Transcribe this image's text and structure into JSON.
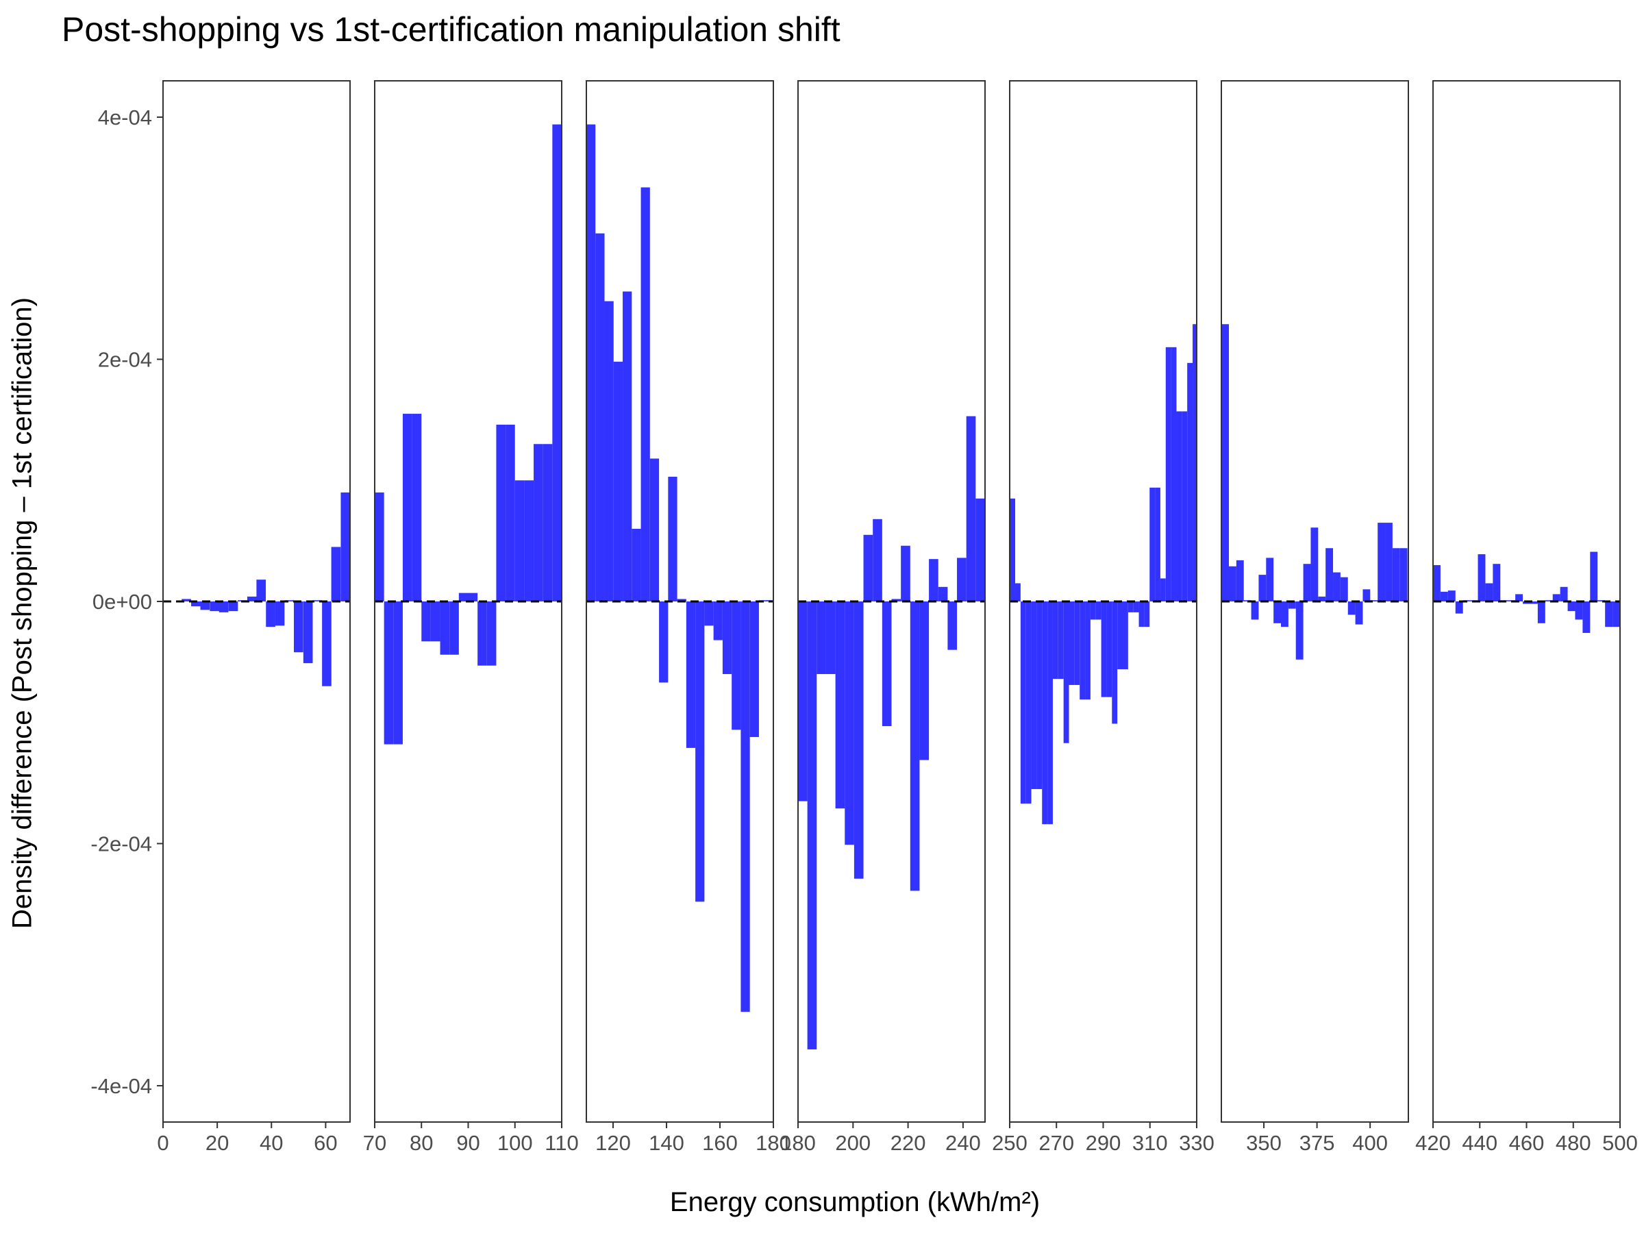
{
  "chart_data": {
    "type": "bar",
    "title": "Post-shopping vs 1st-certification manipulation shift",
    "xlabel": "Energy consumption (kWh/m²)",
    "ylabel": "Density difference (Post shopping – 1st certification)",
    "ylim": [
      -0.00043,
      0.00043
    ],
    "y_ticks": [
      -0.0004,
      -0.0002,
      0,
      0.0002,
      0.0004
    ],
    "y_tick_labels": [
      "-4e-04",
      "-2e-04",
      "0e+00",
      "2e-04",
      "4e-04"
    ],
    "reference_line": {
      "y": 0,
      "style": "dashed"
    },
    "bar_color": "#3333ff",
    "grid": false,
    "panels": [
      {
        "xlim": [
          0,
          69
        ],
        "x_ticks": [
          0,
          20,
          40,
          60
        ],
        "x_tick_labels": [
          "0",
          "20",
          "40",
          "60"
        ],
        "bin_width": 3.45,
        "x": [
          8.6,
          12.1,
          15.5,
          19.0,
          22.4,
          25.9,
          29.3,
          32.8,
          36.2,
          39.7,
          43.1,
          46.6,
          50.0,
          53.5,
          56.9,
          60.4,
          63.8,
          67.3
        ],
        "values": [
          2e-06,
          -4e-06,
          -7e-06,
          -8e-06,
          -9e-06,
          -8e-06,
          1e-06,
          4e-06,
          1.8e-05,
          -2.1e-05,
          -2e-05,
          1e-06,
          -4.2e-05,
          -5.1e-05,
          1e-06,
          -7e-05,
          4.5e-05,
          9e-05
        ]
      },
      {
        "xlim": [
          70,
          110
        ],
        "x_ticks": [
          70,
          80,
          90,
          100,
          110
        ],
        "x_tick_labels": [
          "70",
          "80",
          "90",
          "100",
          "110"
        ],
        "bin_width": 2,
        "x": [
          71,
          73,
          75,
          77,
          79,
          81,
          83,
          85,
          87,
          89,
          91,
          93,
          95,
          97,
          99,
          101,
          103,
          105,
          107,
          109
        ],
        "values": [
          9e-05,
          -0.000118,
          -0.000118,
          0.000155,
          0.000155,
          -3.3e-05,
          -3.3e-05,
          -4.4e-05,
          -4.4e-05,
          7e-06,
          7e-06,
          -5.3e-05,
          -5.3e-05,
          0.000146,
          0.000146,
          0.0001,
          0.0001,
          0.00013,
          0.00013,
          0.000394
        ]
      },
      {
        "xlim": [
          110,
          180
        ],
        "x_ticks": [
          120,
          140,
          160,
          180
        ],
        "x_tick_labels": [
          "120",
          "140",
          "160",
          "180"
        ],
        "bin_width": 3.4,
        "x": [
          111.7,
          115.1,
          118.5,
          121.9,
          125.3,
          128.7,
          132.1,
          135.5,
          138.9,
          142.3,
          145.7,
          149.1,
          152.5,
          155.9,
          159.3,
          162.7,
          166.1,
          169.5,
          172.9,
          176.3,
          179.0
        ],
        "values": [
          0.000394,
          0.000304,
          0.000248,
          0.000198,
          0.000256,
          6e-05,
          0.000342,
          0.000118,
          -6.7e-05,
          0.000103,
          2e-06,
          -0.000121,
          -0.000248,
          -2e-05,
          -3.2e-05,
          -6e-05,
          -0.000106,
          -0.000339,
          -0.000112,
          1e-06,
          1e-06
        ]
      },
      {
        "xlim": [
          180,
          248
        ],
        "x_ticks": [
          180,
          200,
          220,
          240
        ],
        "x_tick_labels": [
          "180",
          "200",
          "220",
          "240"
        ],
        "bin_width": 3.4,
        "x": [
          181.7,
          185.1,
          188.5,
          191.9,
          195.3,
          198.7,
          202.1,
          205.5,
          208.9,
          212.3,
          215.7,
          219.1,
          222.5,
          225.9,
          229.3,
          232.7,
          236.1,
          239.5,
          242.9,
          246.3
        ],
        "values": [
          -0.000165,
          -0.00037,
          -6e-05,
          -6e-05,
          -0.000171,
          -0.000201,
          -0.000229,
          5.5e-05,
          6.8e-05,
          -0.000103,
          2e-06,
          4.6e-05,
          -0.000239,
          -0.000131,
          3.5e-05,
          1.2e-05,
          -4e-05,
          3.6e-05,
          0.000153,
          8.5e-05
        ]
      },
      {
        "xlim": [
          250,
          330
        ],
        "x_ticks": [
          250,
          270,
          290,
          310,
          330
        ],
        "x_tick_labels": [
          "250",
          "270",
          "290",
          "310",
          "330"
        ],
        "bin_width": 2.3,
        "x": [
          251.2,
          253.5,
          255.8,
          258.1,
          260.4,
          262.7,
          265.0,
          267.3,
          269.6,
          271.9,
          274.2,
          276.5,
          278.8,
          281.1,
          283.4,
          285.7,
          288.0,
          290.3,
          292.6,
          294.9,
          297.2,
          299.5,
          301.8,
          304.1,
          306.4,
          308.7,
          311.0,
          313.3,
          315.6,
          317.9,
          320.2,
          322.5,
          324.8,
          327.1,
          329.4
        ],
        "values": [
          8.5e-05,
          1.5e-05,
          -0.000167,
          -0.000167,
          -0.000155,
          -0.000155,
          -0.000184,
          -0.000184,
          -6.4e-05,
          -6.4e-05,
          -0.000117,
          -6.9e-05,
          -6.9e-05,
          -8.1e-05,
          -8.1e-05,
          -1.5e-05,
          -1.5e-05,
          -7.9e-05,
          -7.9e-05,
          -0.000101,
          -5.6e-05,
          -5.6e-05,
          -9e-06,
          -9e-06,
          -2.1e-05,
          -2.1e-05,
          9.4e-05,
          9.4e-05,
          1.9e-05,
          0.00021,
          0.00021,
          0.000157,
          0.000157,
          0.000197,
          0.000229
        ]
      },
      {
        "xlim": [
          330,
          418
        ],
        "x_ticks": [
          350,
          375,
          400
        ],
        "x_tick_labels": [
          "350",
          "375",
          "400"
        ],
        "bin_width": 3.5,
        "x": [
          331.8,
          335.3,
          338.8,
          342.3,
          345.8,
          349.3,
          352.8,
          356.3,
          359.8,
          363.3,
          366.8,
          370.3,
          373.8,
          377.3,
          380.8,
          384.3,
          387.8,
          391.3,
          394.8,
          398.3,
          401.8,
          405.3,
          408.8,
          412.3,
          415.8
        ],
        "values": [
          0.000229,
          2.9e-05,
          3.4e-05,
          1e-06,
          -1.5e-05,
          2.2e-05,
          3.6e-05,
          -1.8e-05,
          -2.1e-05,
          -6e-06,
          -4.8e-05,
          3.1e-05,
          6.1e-05,
          4e-06,
          4.4e-05,
          2.4e-05,
          2e-05,
          -1.1e-05,
          -1.9e-05,
          1e-05,
          1e-06,
          6.5e-05,
          6.5e-05,
          4.4e-05,
          4.4e-05
        ]
      },
      {
        "xlim": [
          420,
          500
        ],
        "x_ticks": [
          420,
          440,
          460,
          480,
          500
        ],
        "x_tick_labels": [
          "420",
          "440",
          "460",
          "480",
          "500"
        ],
        "bin_width": 3.2,
        "x": [
          421.6,
          424.8,
          428.0,
          431.2,
          434.4,
          437.6,
          440.8,
          444.0,
          447.2,
          450.4,
          453.6,
          456.8,
          460.0,
          463.2,
          466.4,
          469.6,
          472.8,
          476.0,
          479.2,
          482.4,
          485.6,
          488.8,
          492.0,
          495.2,
          498.4
        ],
        "values": [
          3e-05,
          8e-06,
          9e-06,
          -1e-05,
          1e-06,
          1e-06,
          3.9e-05,
          1.5e-05,
          3.1e-05,
          1e-06,
          1e-06,
          6e-06,
          -2e-06,
          -2e-06,
          -1.8e-05,
          1e-06,
          6e-06,
          1.2e-05,
          -8e-06,
          -1.5e-05,
          -2.6e-05,
          4.1e-05,
          1e-06,
          -2.1e-05,
          -2.1e-05
        ]
      }
    ]
  }
}
